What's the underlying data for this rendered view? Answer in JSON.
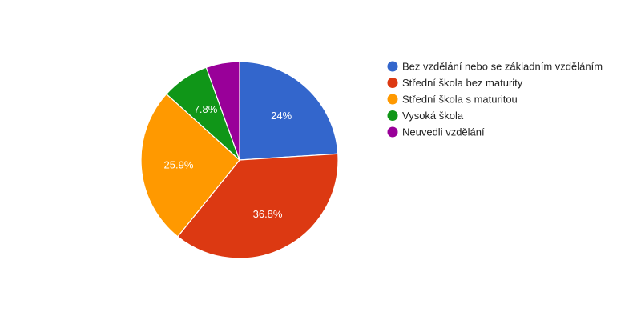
{
  "chart_data": {
    "type": "pie",
    "categories": [
      "Bez vzdělání nebo se základním vzděláním",
      "Střední škola bez maturity",
      "Střední škola s maturitou",
      "Vysoká škola",
      "Neuvedli vzdělání"
    ],
    "values": [
      24.0,
      36.8,
      25.9,
      7.8,
      5.5
    ],
    "data_labels": [
      "24%",
      "36.8%",
      "25.9%",
      "7.8%",
      ""
    ],
    "colors": [
      "#3366cc",
      "#dc3912",
      "#ff9900",
      "#109618",
      "#990099"
    ],
    "start_angle": "12 o'clock",
    "direction": "clockwise",
    "legend": "right"
  }
}
